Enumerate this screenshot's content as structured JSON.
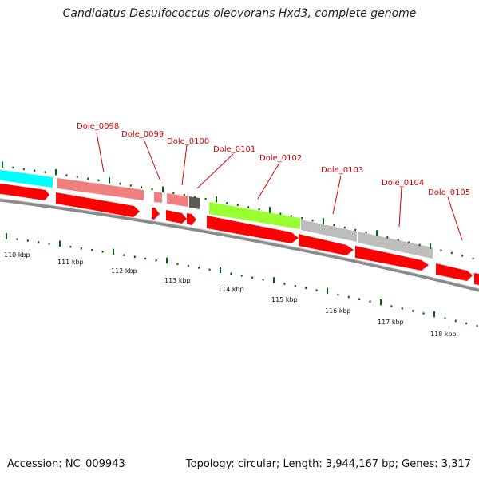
{
  "title": "Candidatus Desulfococcus oleovorans Hxd3, complete genome",
  "footer": {
    "accession": "Accession: NC_009943",
    "summary": "Topology: circular; Length: 3,944,167 bp; Genes: 3,317"
  },
  "colors": {
    "cds": "#ff0000",
    "backbone": "#888888",
    "tick": "#006400",
    "locus_label": "#d00000",
    "cyan_feature": "#00ffff",
    "pink_feature": "#f08080",
    "dark_feature": "#555555",
    "green_feature": "#99ff33",
    "grey_feature": "#bbbbbb"
  },
  "scale": {
    "labels": [
      "110 kbp",
      "111 kbp",
      "112 kbp",
      "113 kbp",
      "114 kbp",
      "115 kbp",
      "116 kbp",
      "117 kbp",
      "118 kbp"
    ]
  },
  "loci": [
    "Dole_0098",
    "Dole_0099",
    "Dole_0100",
    "Dole_0101",
    "Dole_0102",
    "Dole_0103",
    "Dole_0104",
    "Dole_0105"
  ]
}
